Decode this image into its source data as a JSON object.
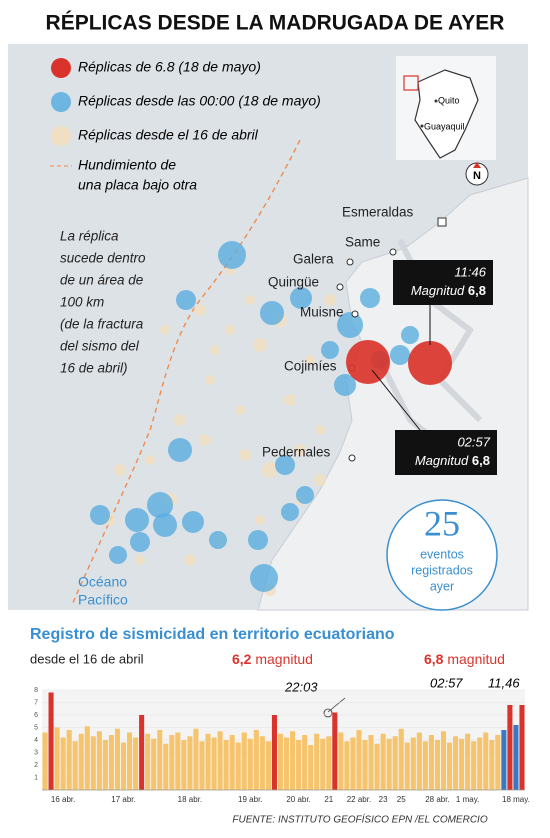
{
  "title": "RÉPLICAS DESDE LA MADRUGADA DE AYER",
  "map": {
    "legend": [
      [
        "Réplicas de 6.8 (18 de mayo)"
      ],
      [
        "Réplicas desde las 00:00 (18 de mayo)"
      ],
      [
        "Réplicas desde el 16 de abril"
      ],
      [
        "Hundimiento de",
        "una placa bajo otra"
      ]
    ],
    "note": [
      "La réplica",
      "sucede dentro",
      "de un área de",
      "100 km",
      "(de la fractura",
      "del sismo del",
      "16 de abril)"
    ],
    "places": [
      "Esmeraldas",
      "Same",
      "Galera",
      "Quingüe",
      "Muisne",
      "Cojimíes",
      "Pedernales"
    ],
    "ocean": [
      "Océano",
      "Pacífico"
    ],
    "inset": [
      "Quito",
      "Guayaquil"
    ],
    "north": "N",
    "callouts": [
      {
        "time": "11:46",
        "label": "Magnitud",
        "magnitude": "6,8"
      },
      {
        "time": "02:57",
        "label": "Magnitud",
        "magnitude": "6,8"
      }
    ],
    "events": {
      "count": 25,
      "label": [
        "eventos",
        "registrados",
        "ayer"
      ]
    }
  },
  "chart_data": {
    "type": "bar",
    "title": "Registro de sismicidad en territorio ecuatoriano",
    "subtitle": "desde el 16 de abril",
    "annotations": [
      {
        "magnitude": "6,2",
        "word": "magnitud",
        "times": [
          "22:03"
        ]
      },
      {
        "magnitude": "6,8",
        "word": "magnitud",
        "times": [
          "02:57",
          "11,46"
        ]
      }
    ],
    "categories": [
      null,
      null,
      null,
      "16 abr.",
      null,
      null,
      null,
      null,
      null,
      null,
      null,
      null,
      null,
      "17 abr.",
      null,
      null,
      null,
      null,
      null,
      null,
      null,
      null,
      null,
      null,
      "18 abr.",
      null,
      null,
      null,
      null,
      null,
      null,
      null,
      null,
      null,
      "19 abr.",
      null,
      null,
      null,
      null,
      null,
      null,
      null,
      "20 abr.",
      null,
      null,
      null,
      null,
      "21",
      null,
      null,
      null,
      null,
      "22 abr.",
      null,
      null,
      null,
      "23",
      null,
      null,
      "25",
      null,
      null,
      null,
      null,
      null,
      "28 abr.",
      null,
      null,
      null,
      null,
      "1 may.",
      null,
      null,
      null,
      null,
      null,
      null,
      null,
      "18 may.",
      null
    ],
    "series": [
      {
        "color": "#f6c46c",
        "values": [
          4.6,
          null,
          5.0,
          4.2,
          4.8,
          3.9,
          4.5,
          5.1,
          4.3,
          4.7,
          4.0,
          4.4,
          4.9,
          3.8,
          4.6,
          4.2,
          null,
          4.5,
          4.1,
          4.8,
          3.7,
          4.4,
          4.6,
          4.0,
          4.3,
          4.9,
          3.9,
          4.5,
          4.2,
          4.7,
          4.0,
          4.4,
          3.8,
          4.6,
          4.1,
          4.8,
          4.3,
          3.9,
          null,
          4.5,
          4.2,
          4.7,
          4.0,
          4.4,
          3.6,
          4.5,
          4.1,
          4.3,
          null,
          4.6,
          3.9,
          4.2,
          4.8,
          4.0,
          4.4,
          3.7,
          4.5,
          4.1,
          4.3,
          4.9,
          3.8,
          4.2,
          4.6,
          3.9,
          4.4,
          4.0,
          4.7,
          3.8,
          4.3,
          4.1,
          4.5,
          3.9,
          4.2,
          4.6,
          4.0,
          4.4,
          null,
          null,
          null,
          null
        ]
      },
      {
        "color": "#d9342b",
        "values": [
          null,
          7.8,
          null,
          null,
          null,
          null,
          null,
          null,
          null,
          null,
          null,
          null,
          null,
          null,
          null,
          null,
          6,
          null,
          null,
          null,
          null,
          null,
          null,
          null,
          null,
          null,
          null,
          null,
          null,
          null,
          null,
          null,
          null,
          null,
          null,
          null,
          null,
          null,
          6,
          null,
          null,
          null,
          null,
          null,
          null,
          null,
          null,
          null,
          6.2,
          null,
          null,
          null,
          null,
          null,
          null,
          null,
          null,
          null,
          null,
          null,
          null,
          null,
          null,
          null,
          null,
          null,
          null,
          null,
          null,
          null,
          null,
          null,
          null,
          null,
          null,
          null,
          null,
          6.8,
          null,
          6.8
        ]
      },
      {
        "color": "#3a78c2",
        "values": [
          null,
          null,
          null,
          null,
          null,
          null,
          null,
          null,
          null,
          null,
          null,
          null,
          null,
          null,
          null,
          null,
          null,
          null,
          null,
          null,
          null,
          null,
          null,
          null,
          null,
          null,
          null,
          null,
          null,
          null,
          null,
          null,
          null,
          null,
          null,
          null,
          null,
          null,
          null,
          null,
          null,
          null,
          null,
          null,
          null,
          null,
          null,
          null,
          null,
          null,
          null,
          null,
          null,
          null,
          null,
          null,
          null,
          null,
          null,
          null,
          null,
          null,
          null,
          null,
          null,
          null,
          null,
          null,
          null,
          null,
          null,
          null,
          null,
          null,
          null,
          null,
          4.8,
          null,
          5.2,
          null
        ]
      }
    ],
    "ylim": [
      0,
      8
    ],
    "yticks": [
      1,
      2,
      3,
      4,
      5,
      6,
      7,
      8
    ]
  },
  "source": "FUENTE: INSTITUTO GEOFÍSICO EPN /EL COMERCIO"
}
